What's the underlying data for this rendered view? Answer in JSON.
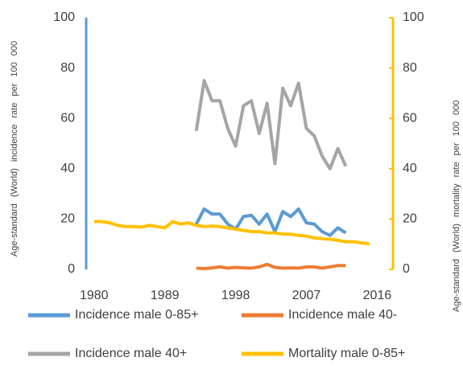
{
  "chart_data": {
    "type": "line",
    "ylabel": "Age-standard (World) incidence rate per 100 000",
    "y2label": "Age-standard (World) mortality rate per 100 000",
    "x": [
      1980,
      1981,
      1982,
      1983,
      1984,
      1985,
      1986,
      1987,
      1988,
      1989,
      1990,
      1991,
      1992,
      1993,
      1994,
      1995,
      1996,
      1997,
      1998,
      1999,
      2000,
      2001,
      2002,
      2003,
      2004,
      2005,
      2006,
      2007,
      2008,
      2009,
      2010,
      2011,
      2012,
      2013,
      2014,
      2015
    ],
    "xlim": [
      1979,
      2018
    ],
    "xticks": [
      1980,
      1989,
      1998,
      2007,
      2016
    ],
    "ylim": [
      0,
      100
    ],
    "yticks": [
      0,
      20,
      40,
      60,
      80,
      100
    ],
    "y2lim": [
      0,
      100
    ],
    "y2ticks": [
      0,
      20,
      40,
      60,
      80,
      100
    ],
    "y_axis_color": "#5b9bd5",
    "y2_axis_color": "#ffc000",
    "series": [
      {
        "name": "Incidence male 0-85+",
        "color": "#5b9bd5",
        "values": [
          null,
          null,
          null,
          null,
          null,
          null,
          null,
          null,
          null,
          null,
          null,
          null,
          null,
          18,
          24,
          22,
          22,
          18,
          16,
          21,
          21.5,
          18,
          22,
          15,
          23,
          21,
          24,
          18.5,
          18,
          15,
          13.5,
          16.5,
          14.5,
          null,
          null,
          null
        ]
      },
      {
        "name": "Incidence male 40-",
        "color": "#ed7d31",
        "values": [
          null,
          null,
          null,
          null,
          null,
          null,
          null,
          null,
          null,
          null,
          null,
          null,
          null,
          0.5,
          0.3,
          0.6,
          1,
          0.5,
          0.8,
          0.6,
          0.5,
          1,
          2,
          0.8,
          0.5,
          0.6,
          0.5,
          1,
          1,
          0.5,
          1,
          1.5,
          1.5,
          null,
          null,
          null
        ]
      },
      {
        "name": "Incidence male 40+",
        "color": "#a5a5a5",
        "values": [
          null,
          null,
          null,
          null,
          null,
          null,
          null,
          null,
          null,
          null,
          null,
          null,
          null,
          55,
          75,
          67,
          67,
          56,
          49,
          65,
          67,
          54,
          66,
          42,
          72,
          65,
          74,
          56,
          53,
          45,
          40,
          48,
          41,
          null,
          null,
          null
        ]
      },
      {
        "name": "Mortality male 0-85+",
        "color": "#ffc000",
        "axis": "y2",
        "values": [
          19,
          19,
          18.5,
          17.5,
          17,
          17,
          16.8,
          17.5,
          17,
          16.5,
          19,
          18,
          18.5,
          17.5,
          17,
          17.2,
          17,
          16.5,
          16,
          15.5,
          15,
          15,
          14.5,
          14.5,
          14,
          14,
          13.5,
          13.2,
          12.5,
          12.2,
          12,
          11.5,
          11,
          11,
          10.5,
          10.2
        ]
      }
    ]
  }
}
